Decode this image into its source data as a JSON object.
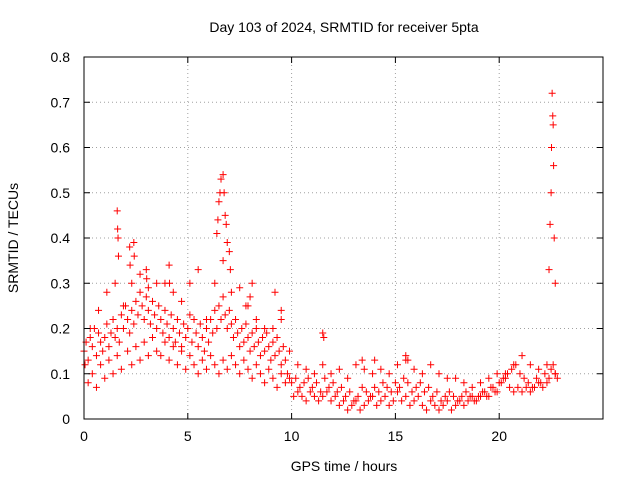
{
  "chart_data": {
    "type": "scatter",
    "title": "Day 103 of 2024, SRMTID for receiver 5pta",
    "xlabel": "GPS time / hours",
    "ylabel": "SRMTID / TECUs",
    "xlim": [
      0,
      25
    ],
    "ylim": [
      0,
      0.8
    ],
    "grid": true,
    "marker": "+",
    "color": "#ff0000",
    "xticks": [
      0,
      5,
      10,
      15,
      20
    ],
    "xtick_labels": [
      "0",
      "5",
      "10",
      "15",
      "20"
    ],
    "yticks": [
      0,
      0.1,
      0.2,
      0.3,
      0.4,
      0.5,
      0.6,
      0.7,
      0.8
    ],
    "ytick_labels": [
      "0",
      "0.1",
      "0.2",
      "0.3",
      "0.4",
      "0.5",
      "0.6",
      "0.7",
      "0.8"
    ],
    "series": [
      {
        "name": "SRMTID",
        "x": [
          0.0,
          0.1,
          0.2,
          0.3,
          0.4,
          0.5,
          0.6,
          0.7,
          0.8,
          0.9,
          1.0,
          1.1,
          1.2,
          1.3,
          1.4,
          1.5,
          1.6,
          1.7,
          1.8,
          1.9,
          2.0,
          2.1,
          2.2,
          2.3,
          2.4,
          2.5,
          2.6,
          2.7,
          2.8,
          2.9,
          3.0,
          3.1,
          3.2,
          3.3,
          3.4,
          3.5,
          3.6,
          3.7,
          3.8,
          3.9,
          4.0,
          4.1,
          4.2,
          4.3,
          4.4,
          4.5,
          4.6,
          4.7,
          4.8,
          4.9,
          5.0,
          5.1,
          5.2,
          5.3,
          5.4,
          5.5,
          5.6,
          5.7,
          5.8,
          5.9,
          6.0,
          6.1,
          6.2,
          6.3,
          6.4,
          6.5,
          6.6,
          6.7,
          6.8,
          6.9,
          7.0,
          7.1,
          7.2,
          7.3,
          7.4,
          7.5,
          7.6,
          7.7,
          7.8,
          7.9,
          8.0,
          8.1,
          8.2,
          8.3,
          8.4,
          8.5,
          8.6,
          8.7,
          8.8,
          8.9,
          9.0,
          9.1,
          9.2,
          9.3,
          9.4,
          9.5,
          9.6,
          9.7,
          9.8,
          9.9,
          10.0,
          10.2,
          10.4,
          10.6,
          10.8,
          11.0,
          11.2,
          11.4,
          11.6,
          11.8,
          12.0,
          12.2,
          12.4,
          12.6,
          12.8,
          13.0,
          13.2,
          13.4,
          13.6,
          13.8,
          14.0,
          14.2,
          14.4,
          14.6,
          14.8,
          15.0,
          15.2,
          15.4,
          15.6,
          15.8,
          16.0,
          16.2,
          16.4,
          16.6,
          16.8,
          17.0,
          17.2,
          17.4,
          17.6,
          17.8,
          18.0,
          18.2,
          18.4,
          18.6,
          18.8,
          19.0,
          19.2,
          19.4,
          19.6,
          19.8,
          20.0,
          20.2,
          20.4,
          20.6,
          20.8,
          21.0,
          21.2,
          21.4,
          21.6,
          21.8,
          22.0,
          22.2,
          22.4,
          22.5,
          22.6,
          22.7,
          22.8,
          0.05,
          0.2,
          0.4,
          0.6,
          0.8,
          1.0,
          1.2,
          1.4,
          1.6,
          1.8,
          2.1,
          2.3,
          2.5,
          2.7,
          2.9,
          3.1,
          3.3,
          3.5,
          3.7,
          3.9,
          4.1,
          4.3,
          4.5,
          4.7,
          4.9,
          5.1,
          5.3,
          5.5,
          5.7,
          5.9,
          6.1,
          6.3,
          6.5,
          6.7,
          6.9,
          7.1,
          7.3,
          7.5,
          7.7,
          7.9,
          8.1,
          8.3,
          8.5,
          8.7,
          8.9,
          9.1,
          9.3,
          9.5,
          9.7,
          10.1,
          10.3,
          10.5,
          10.7,
          10.9,
          11.1,
          11.3,
          11.5,
          11.7,
          11.9,
          12.1,
          12.3,
          12.5,
          12.7,
          12.9,
          13.1,
          13.3,
          13.5,
          13.7,
          13.9,
          14.1,
          14.3,
          14.5,
          14.7,
          14.9,
          15.1,
          15.3,
          15.5,
          15.7,
          15.9,
          16.1,
          16.3,
          16.5,
          16.7,
          16.9,
          17.1,
          17.3,
          17.5,
          17.7,
          17.9,
          18.1,
          18.3,
          18.5,
          18.7,
          18.9,
          19.1,
          19.3,
          19.5,
          19.7,
          19.9,
          20.1,
          20.3,
          20.5,
          20.7,
          20.9,
          21.1,
          21.3,
          21.5,
          21.7,
          21.9,
          22.1,
          22.3,
          1.6,
          1.62,
          1.64,
          1.66,
          2.2,
          2.22,
          2.4,
          2.42,
          3.0,
          3.02,
          4.1,
          4.12,
          6.4,
          6.45,
          6.5,
          6.55,
          6.6,
          6.7,
          6.75,
          6.8,
          6.85,
          6.9,
          7.0,
          7.05,
          22.4,
          22.45,
          22.5,
          22.52,
          22.55,
          22.58,
          22.6,
          22.62,
          22.65,
          22.7,
          8.0,
          8.1,
          7.8,
          9.2,
          9.5,
          11.5,
          11.55,
          13.4,
          14.0,
          15.5,
          15.6,
          0.3,
          0.7,
          1.1,
          1.5,
          1.9,
          2.3,
          2.7,
          3.1,
          3.5,
          3.9,
          4.3,
          4.7,
          5.1,
          5.5,
          5.9,
          6.3,
          6.7,
          7.1,
          7.5,
          7.9,
          8.3,
          8.7,
          9.1,
          9.5,
          9.9,
          10.3,
          10.7,
          11.1,
          11.5,
          11.9,
          12.3,
          12.7,
          13.1,
          13.5,
          13.9,
          14.3,
          14.7,
          15.1,
          15.5,
          15.9,
          16.3,
          16.7,
          17.1,
          17.5,
          17.9,
          18.3,
          18.7,
          19.1,
          19.5,
          19.9,
          20.3,
          20.7,
          21.1,
          21.5,
          21.9,
          22.3,
          22.7
        ],
        "y": [
          0.15,
          0.17,
          0.13,
          0.18,
          0.16,
          0.2,
          0.14,
          0.19,
          0.17,
          0.15,
          0.18,
          0.21,
          0.16,
          0.19,
          0.22,
          0.18,
          0.2,
          0.17,
          0.23,
          0.2,
          0.25,
          0.22,
          0.19,
          0.24,
          0.21,
          0.26,
          0.23,
          0.28,
          0.25,
          0.22,
          0.27,
          0.24,
          0.21,
          0.26,
          0.23,
          0.2,
          0.25,
          0.22,
          0.19,
          0.24,
          0.21,
          0.18,
          0.23,
          0.2,
          0.17,
          0.22,
          0.19,
          0.16,
          0.21,
          0.18,
          0.2,
          0.23,
          0.17,
          0.22,
          0.19,
          0.16,
          0.21,
          0.18,
          0.15,
          0.2,
          0.17,
          0.22,
          0.19,
          0.24,
          0.2,
          0.25,
          0.22,
          0.27,
          0.23,
          0.2,
          0.24,
          0.21,
          0.18,
          0.22,
          0.19,
          0.16,
          0.2,
          0.17,
          0.21,
          0.18,
          0.15,
          0.19,
          0.16,
          0.2,
          0.17,
          0.14,
          0.18,
          0.15,
          0.19,
          0.16,
          0.13,
          0.17,
          0.14,
          0.18,
          0.15,
          0.12,
          0.16,
          0.13,
          0.1,
          0.09,
          0.08,
          0.09,
          0.07,
          0.08,
          0.09,
          0.07,
          0.08,
          0.06,
          0.09,
          0.07,
          0.08,
          0.06,
          0.07,
          0.05,
          0.06,
          0.04,
          0.05,
          0.07,
          0.06,
          0.05,
          0.07,
          0.06,
          0.08,
          0.07,
          0.06,
          0.08,
          0.07,
          0.09,
          0.08,
          0.06,
          0.07,
          0.08,
          0.06,
          0.07,
          0.05,
          0.06,
          0.04,
          0.05,
          0.06,
          0.05,
          0.04,
          0.05,
          0.06,
          0.05,
          0.04,
          0.05,
          0.06,
          0.05,
          0.07,
          0.06,
          0.08,
          0.09,
          0.1,
          0.11,
          0.12,
          0.1,
          0.09,
          0.08,
          0.07,
          0.09,
          0.08,
          0.1,
          0.09,
          0.11,
          0.12,
          0.1,
          0.09,
          0.12,
          0.08,
          0.1,
          0.07,
          0.12,
          0.09,
          0.13,
          0.1,
          0.14,
          0.11,
          0.15,
          0.12,
          0.16,
          0.13,
          0.17,
          0.14,
          0.18,
          0.15,
          0.14,
          0.17,
          0.13,
          0.16,
          0.12,
          0.15,
          0.11,
          0.14,
          0.12,
          0.1,
          0.13,
          0.11,
          0.14,
          0.12,
          0.1,
          0.13,
          0.11,
          0.14,
          0.12,
          0.1,
          0.13,
          0.11,
          0.09,
          0.12,
          0.1,
          0.08,
          0.11,
          0.09,
          0.07,
          0.1,
          0.08,
          0.05,
          0.06,
          0.05,
          0.04,
          0.06,
          0.05,
          0.04,
          0.05,
          0.06,
          0.04,
          0.05,
          0.03,
          0.04,
          0.02,
          0.03,
          0.04,
          0.02,
          0.03,
          0.04,
          0.05,
          0.03,
          0.04,
          0.05,
          0.03,
          0.04,
          0.06,
          0.04,
          0.05,
          0.03,
          0.04,
          0.05,
          0.03,
          0.02,
          0.04,
          0.03,
          0.02,
          0.03,
          0.04,
          0.02,
          0.03,
          0.04,
          0.03,
          0.04,
          0.05,
          0.04,
          0.05,
          0.06,
          0.05,
          0.07,
          0.06,
          0.08,
          0.09,
          0.07,
          0.06,
          0.07,
          0.06,
          0.07,
          0.06,
          0.07,
          0.08,
          0.07,
          0.08,
          0.46,
          0.42,
          0.4,
          0.36,
          0.38,
          0.34,
          0.39,
          0.36,
          0.33,
          0.31,
          0.34,
          0.3,
          0.41,
          0.44,
          0.48,
          0.5,
          0.53,
          0.54,
          0.5,
          0.45,
          0.43,
          0.39,
          0.37,
          0.33,
          0.33,
          0.43,
          0.5,
          0.6,
          0.72,
          0.67,
          0.65,
          0.56,
          0.4,
          0.3,
          0.27,
          0.3,
          0.25,
          0.28,
          0.24,
          0.19,
          0.18,
          0.13,
          0.13,
          0.14,
          0.13,
          0.2,
          0.24,
          0.28,
          0.3,
          0.25,
          0.3,
          0.32,
          0.29,
          0.3,
          0.3,
          0.28,
          0.26,
          0.3,
          0.33,
          0.22,
          0.3,
          0.35,
          0.28,
          0.29,
          0.25,
          0.22,
          0.2,
          0.2,
          0.22,
          0.15,
          0.12,
          0.11,
          0.1,
          0.12,
          0.1,
          0.11,
          0.09,
          0.12,
          0.11,
          0.1,
          0.11,
          0.1,
          0.12,
          0.13,
          0.11,
          0.1,
          0.12,
          0.1,
          0.09,
          0.09,
          0.08,
          0.07,
          0.08,
          0.09,
          0.1,
          0.1,
          0.12,
          0.14,
          0.12,
          0.11,
          0.12,
          0.1
        ]
      }
    ]
  }
}
